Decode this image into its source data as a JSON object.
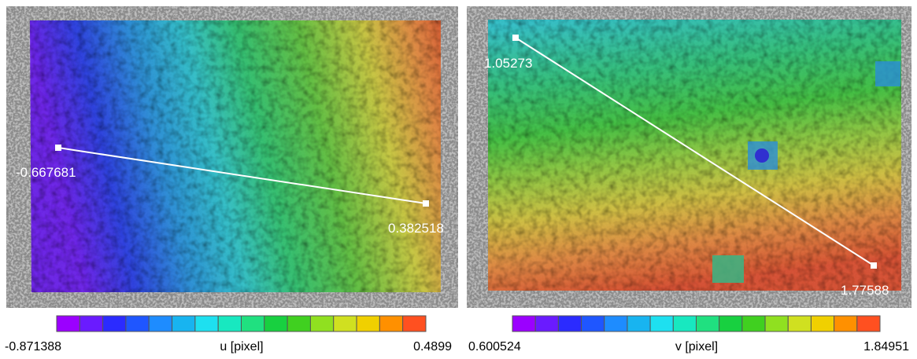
{
  "panels": [
    {
      "start_label": "-0.667681",
      "end_label": "0.382518",
      "colorbar": {
        "min": "-0.871388",
        "label": "u [pixel]",
        "max": "0.4899"
      }
    },
    {
      "start_label": "1.05273",
      "end_label": "1.77588",
      "colorbar": {
        "min": "0.600524",
        "label": "v [pixel]",
        "max": "1.84951"
      }
    }
  ]
}
